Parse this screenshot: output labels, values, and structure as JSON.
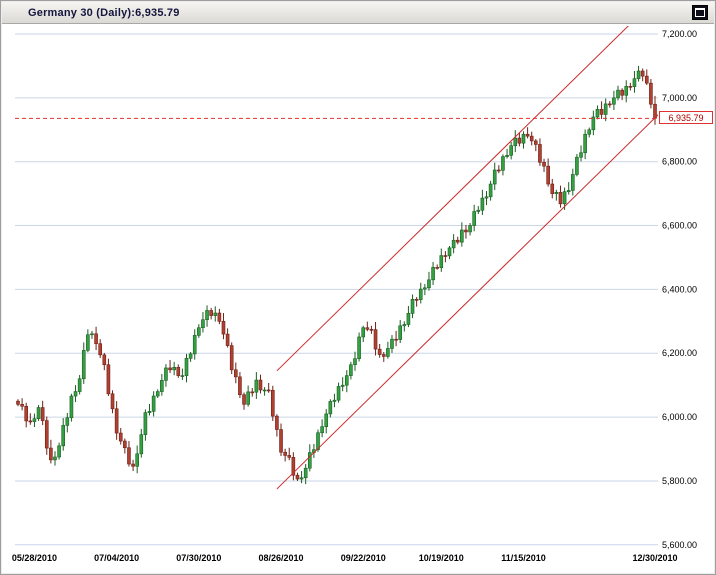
{
  "window": {
    "title": "Germany 30 (Daily):6,935.79",
    "control_icon": "collapse-chart"
  },
  "colors": {
    "up_candle": "#33a042",
    "up_border": "#1b5e23",
    "down_candle": "#b0402f",
    "down_border": "#6e2018",
    "grid": "#c9d6e8",
    "trendline": "#cc2a2a",
    "price_line": "#e03030",
    "axis_text": "#000000",
    "title_text": "#14143c"
  },
  "chart_data": {
    "type": "candlestick",
    "title": "Germany 30 (Daily):6,935.79",
    "instrument": "Germany 30",
    "timeframe": "Daily",
    "last_price_label": "6,935.79",
    "grid": "horizontal-only",
    "legend": "none",
    "ylim": [
      5600,
      7200
    ],
    "y_ticks": [
      {
        "label": "7,200.00",
        "value": 7200
      },
      {
        "label": "7,000.00",
        "value": 7000
      },
      {
        "label": "6,800.00",
        "value": 6800
      },
      {
        "label": "6,600.00",
        "value": 6600
      },
      {
        "label": "6,400.00",
        "value": 6400
      },
      {
        "label": "6,200.00",
        "value": 6200
      },
      {
        "label": "6,000.00",
        "value": 6000
      },
      {
        "label": "5,800.00",
        "value": 5800
      },
      {
        "label": "5,600.00",
        "value": 5600
      }
    ],
    "x_labels": [
      {
        "label": "05/28/2010",
        "index": 4
      },
      {
        "label": "07/04/2010",
        "index": 24
      },
      {
        "label": "07/30/2010",
        "index": 44
      },
      {
        "label": "08/26/2010",
        "index": 64
      },
      {
        "label": "09/22/2010",
        "index": 84
      },
      {
        "label": "10/19/2010",
        "index": 103
      },
      {
        "label": "11/15/2010",
        "index": 123
      },
      {
        "label": "12/30/2010",
        "index": 155
      }
    ],
    "candles": {
      "first_open": 6050,
      "closes": [
        6040,
        6034,
        5988,
        5986,
        5995,
        6030,
        5989,
        5903,
        5866,
        5875,
        5910,
        5974,
        5998,
        6066,
        6080,
        6120,
        6209,
        6258,
        6261,
        6230,
        6195,
        6164,
        6073,
        6026,
        5950,
        5925,
        5904,
        5853,
        5846,
        5885,
        5945,
        6014,
        6018,
        6066,
        6080,
        6115,
        6154,
        6148,
        6156,
        6130,
        6130,
        6184,
        6198,
        6256,
        6280,
        6305,
        6334,
        6318,
        6326,
        6300,
        6260,
        6224,
        6148,
        6126,
        6070,
        6040,
        6079,
        6078,
        6116,
        6085,
        6085,
        6084,
        6003,
        5961,
        5890,
        5880,
        5874,
        5818,
        5806,
        5810,
        5840,
        5889,
        5898,
        5951,
        5970,
        6010,
        6049,
        6053,
        6096,
        6100,
        6130,
        6164,
        6183,
        6251,
        6280,
        6275,
        6274,
        6213,
        6196,
        6190,
        6215,
        6244,
        6243,
        6286,
        6290,
        6325,
        6369,
        6368,
        6401,
        6405,
        6430,
        6469,
        6468,
        6506,
        6505,
        6530,
        6554,
        6548,
        6586,
        6580,
        6600,
        6644,
        6648,
        6686,
        6690,
        6730,
        6774,
        6773,
        6816,
        6820,
        6850,
        6874,
        6858,
        6886,
        6880,
        6865,
        6854,
        6798,
        6786,
        6730,
        6700,
        6704,
        6668,
        6706,
        6710,
        6760,
        6814,
        6828,
        6886,
        6900,
        6940,
        6964,
        6948,
        6981,
        6980,
        7000,
        7024,
        7008,
        7036,
        7035,
        7060,
        7084,
        7068,
        7046,
        6980,
        6935.79
      ]
    },
    "trendlines": [
      {
        "name": "channel-lower",
        "from": {
          "index": 63,
          "price": 5775
        },
        "to": {
          "index": 156,
          "price": 6950
        }
      },
      {
        "name": "channel-upper",
        "from": {
          "index": 63,
          "price": 6145
        },
        "to": {
          "index": 156,
          "price": 7320
        }
      }
    ],
    "price_line": {
      "price": 6935.79,
      "label": "6,935.79"
    }
  }
}
